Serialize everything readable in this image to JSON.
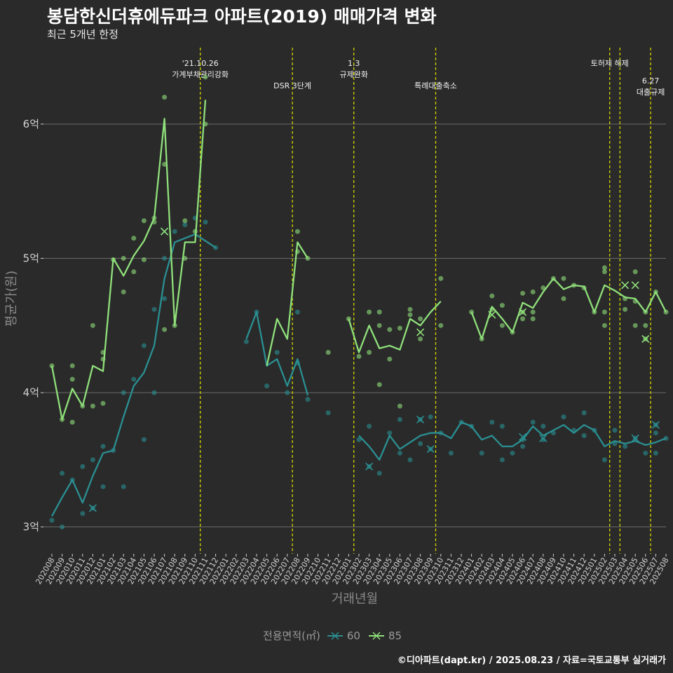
{
  "title": "봉담한신더휴에듀파크 아파트(2019) 매매가격 변화",
  "subtitle": "최근 5개년 한정",
  "caption": "©디아파트(dapt.kr) / 2025.08.23 / 자료=국토교통부 실거래가",
  "legend": {
    "title": "전용면적(㎡)",
    "items": [
      "60",
      "85"
    ]
  },
  "colors": {
    "background": "#2a2a2a",
    "series60": "#2a8f92",
    "series85": "#8fe07a",
    "vline": "#d4d400",
    "grid": "#6a6a6a",
    "axis_text": "#d0d0d0",
    "axis_title": "#8a8a8a"
  },
  "chart_data": {
    "type": "line",
    "xlabel": "거래년월",
    "ylabel": "평균가(원)",
    "ylim": [
      2.8,
      6.6
    ],
    "yticks": [
      3,
      4,
      5,
      6
    ],
    "ytick_labels": [
      "3억",
      "4억",
      "5억",
      "6억"
    ],
    "grid": true,
    "legend_position": "bottom",
    "categories": [
      "202008",
      "202009",
      "202010",
      "202011",
      "202012",
      "202101",
      "202102",
      "202103",
      "202104",
      "202105",
      "202106",
      "202107",
      "202108",
      "202109",
      "202110",
      "202111",
      "202112",
      "202201",
      "202202",
      "202203",
      "202204",
      "202205",
      "202206",
      "202207",
      "202208",
      "202209",
      "202210",
      "202211",
      "202212",
      "202301",
      "202302",
      "202303",
      "202304",
      "202305",
      "202306",
      "202307",
      "202308",
      "202309",
      "202310",
      "202311",
      "202312",
      "202401",
      "202402",
      "202403",
      "202404",
      "202405",
      "202406",
      "202407",
      "202408",
      "202409",
      "202410",
      "202411",
      "202412",
      "202501",
      "202502",
      "202503",
      "202504",
      "202505",
      "202506",
      "202507",
      "202508"
    ],
    "series": [
      {
        "name": "60",
        "values": [
          3.08,
          3.22,
          3.35,
          3.18,
          3.38,
          3.55,
          3.57,
          3.82,
          4.05,
          4.15,
          4.35,
          4.85,
          5.12,
          5.15,
          5.18,
          5.13,
          5.08,
          null,
          null,
          4.4,
          4.6,
          4.2,
          4.25,
          4.05,
          4.25,
          3.98,
          null,
          null,
          null,
          null,
          3.68,
          3.6,
          3.5,
          3.68,
          3.58,
          3.63,
          3.68,
          3.7,
          3.7,
          3.66,
          3.78,
          3.75,
          3.65,
          3.68,
          3.6,
          3.6,
          3.65,
          3.75,
          3.68,
          3.72,
          3.76,
          3.7,
          3.76,
          3.72,
          3.6,
          3.64,
          3.62,
          3.64,
          3.61,
          3.63,
          3.66
        ],
        "points": [
          [
            0,
            3.05
          ],
          [
            1,
            3.4
          ],
          [
            1,
            3.0
          ],
          [
            2,
            3.35
          ],
          [
            3,
            3.1
          ],
          [
            3,
            3.45
          ],
          [
            4,
            3.14
          ],
          [
            4,
            3.5
          ],
          [
            5,
            3.6
          ],
          [
            5,
            3.3
          ],
          [
            6,
            3.57
          ],
          [
            7,
            4.0
          ],
          [
            7,
            3.3
          ],
          [
            8,
            4.1
          ],
          [
            9,
            4.35
          ],
          [
            9,
            3.65
          ],
          [
            10,
            4.62
          ],
          [
            10,
            4.0
          ],
          [
            11,
            5.0
          ],
          [
            11,
            4.7
          ],
          [
            12,
            5.2
          ],
          [
            13,
            5.25
          ],
          [
            14,
            5.3
          ],
          [
            15,
            5.27
          ],
          [
            16,
            5.08
          ],
          [
            19,
            4.38
          ],
          [
            20,
            4.6
          ],
          [
            21,
            4.05
          ],
          [
            22,
            4.3
          ],
          [
            23,
            4.0
          ],
          [
            24,
            4.6
          ],
          [
            24,
            4.22
          ],
          [
            25,
            3.95
          ],
          [
            27,
            3.85
          ],
          [
            30,
            3.65
          ],
          [
            31,
            3.45
          ],
          [
            31,
            3.75
          ],
          [
            32,
            3.4
          ],
          [
            33,
            3.7
          ],
          [
            34,
            3.55
          ],
          [
            34,
            3.8
          ],
          [
            35,
            3.5
          ],
          [
            36,
            3.8
          ],
          [
            36,
            3.62
          ],
          [
            37,
            3.58
          ],
          [
            37,
            3.82
          ],
          [
            38,
            3.7
          ],
          [
            39,
            3.55
          ],
          [
            40,
            3.78
          ],
          [
            41,
            3.75
          ],
          [
            42,
            3.55
          ],
          [
            43,
            3.78
          ],
          [
            44,
            3.5
          ],
          [
            44,
            3.75
          ],
          [
            45,
            3.55
          ],
          [
            46,
            3.65
          ],
          [
            46,
            3.6
          ],
          [
            47,
            3.78
          ],
          [
            48,
            3.65
          ],
          [
            48,
            3.75
          ],
          [
            49,
            3.7
          ],
          [
            50,
            3.82
          ],
          [
            51,
            3.72
          ],
          [
            52,
            3.85
          ],
          [
            52,
            3.68
          ],
          [
            53,
            3.72
          ],
          [
            54,
            3.5
          ],
          [
            55,
            3.62
          ],
          [
            55,
            3.72
          ],
          [
            56,
            3.6
          ],
          [
            57,
            3.66
          ],
          [
            58,
            3.55
          ],
          [
            59,
            3.76
          ],
          [
            59,
            3.7
          ],
          [
            59,
            3.55
          ],
          [
            60,
            3.66
          ]
        ],
        "cancelled": [
          [
            4,
            3.14
          ],
          [
            11,
            5.2
          ],
          [
            31,
            3.45
          ],
          [
            36,
            3.8
          ],
          [
            37,
            3.58
          ],
          [
            46,
            3.67
          ],
          [
            48,
            3.66
          ],
          [
            57,
            3.66
          ],
          [
            59,
            3.76
          ]
        ]
      },
      {
        "name": "85",
        "values": [
          4.2,
          3.8,
          4.03,
          3.9,
          4.2,
          4.16,
          5.0,
          4.87,
          5.02,
          5.13,
          5.3,
          6.04,
          4.5,
          5.12,
          5.12,
          6.18,
          null,
          null,
          null,
          null,
          null,
          4.2,
          4.55,
          4.4,
          5.12,
          5.0,
          null,
          4.3,
          null,
          4.55,
          4.3,
          4.5,
          4.33,
          4.35,
          4.32,
          4.55,
          4.5,
          4.6,
          4.68,
          null,
          null,
          4.6,
          4.4,
          4.64,
          4.55,
          4.45,
          4.67,
          4.63,
          4.75,
          4.85,
          4.77,
          4.8,
          4.79,
          4.6,
          4.8,
          4.76,
          4.71,
          4.7,
          4.6,
          4.75,
          4.6
        ],
        "points": [
          [
            0,
            4.2
          ],
          [
            1,
            3.8
          ],
          [
            2,
            4.2
          ],
          [
            2,
            4.1
          ],
          [
            2,
            3.78
          ],
          [
            3,
            3.9
          ],
          [
            4,
            4.5
          ],
          [
            4,
            3.9
          ],
          [
            5,
            4.3
          ],
          [
            5,
            4.25
          ],
          [
            5,
            3.92
          ],
          [
            6,
            4.99
          ],
          [
            7,
            5.0
          ],
          [
            7,
            4.75
          ],
          [
            8,
            5.15
          ],
          [
            8,
            4.9
          ],
          [
            9,
            5.28
          ],
          [
            9,
            4.99
          ],
          [
            10,
            5.3
          ],
          [
            10,
            5.27
          ],
          [
            11,
            6.2
          ],
          [
            11,
            5.7
          ],
          [
            11,
            4.47
          ],
          [
            12,
            4.5
          ],
          [
            13,
            5.28
          ],
          [
            13,
            5.0
          ],
          [
            14,
            5.2
          ],
          [
            15,
            6.35
          ],
          [
            15,
            6.0
          ],
          [
            24,
            5.2
          ],
          [
            24,
            5.05
          ],
          [
            25,
            5.0
          ],
          [
            27,
            4.3
          ],
          [
            29,
            4.55
          ],
          [
            30,
            4.27
          ],
          [
            31,
            4.3
          ],
          [
            31,
            4.6
          ],
          [
            32,
            4.6
          ],
          [
            32,
            4.5
          ],
          [
            32,
            4.06
          ],
          [
            33,
            4.47
          ],
          [
            33,
            4.25
          ],
          [
            34,
            4.48
          ],
          [
            34,
            3.9
          ],
          [
            35,
            4.62
          ],
          [
            35,
            4.58
          ],
          [
            36,
            4.55
          ],
          [
            36,
            4.4
          ],
          [
            38,
            4.85
          ],
          [
            38,
            4.5
          ],
          [
            41,
            4.6
          ],
          [
            42,
            4.4
          ],
          [
            43,
            4.72
          ],
          [
            43,
            4.62
          ],
          [
            44,
            4.65
          ],
          [
            44,
            4.5
          ],
          [
            45,
            4.45
          ],
          [
            46,
            4.74
          ],
          [
            46,
            4.6
          ],
          [
            46,
            4.55
          ],
          [
            47,
            4.75
          ],
          [
            47,
            4.6
          ],
          [
            47,
            4.55
          ],
          [
            48,
            4.78
          ],
          [
            49,
            4.85
          ],
          [
            50,
            4.85
          ],
          [
            50,
            4.7
          ],
          [
            51,
            4.8
          ],
          [
            52,
            4.78
          ],
          [
            53,
            4.6
          ],
          [
            54,
            4.93
          ],
          [
            54,
            4.9
          ],
          [
            54,
            4.6
          ],
          [
            54,
            4.5
          ],
          [
            56,
            4.7
          ],
          [
            56,
            4.62
          ],
          [
            57,
            4.9
          ],
          [
            57,
            4.68
          ],
          [
            57,
            4.5
          ],
          [
            58,
            4.6
          ],
          [
            58,
            4.5
          ],
          [
            58,
            4.4
          ],
          [
            59,
            4.75
          ],
          [
            60,
            4.6
          ]
        ],
        "cancelled": [
          [
            11,
            5.2
          ],
          [
            36,
            4.45
          ],
          [
            43,
            4.58
          ],
          [
            46,
            4.6
          ],
          [
            56,
            4.8
          ],
          [
            57,
            4.8
          ],
          [
            58,
            4.4
          ]
        ]
      }
    ],
    "annotations": [
      {
        "x_index": 14.5,
        "lines": [
          "'21.10.26",
          "가계부채관리강화"
        ],
        "row": 0
      },
      {
        "x_index": 23.5,
        "lines": [
          "DSR 3단계"
        ],
        "row": 1
      },
      {
        "x_index": 29.5,
        "lines": [
          "1.3",
          "규제완화"
        ],
        "row": 0
      },
      {
        "x_index": 37.5,
        "lines": [
          "특례대출축소"
        ],
        "row": 1
      },
      {
        "x_index": 54.5,
        "lines": [
          "토허제 해제"
        ],
        "row": 0
      },
      {
        "x_index": 55.5,
        "lines": [],
        "row": 0
      },
      {
        "x_index": 58.5,
        "lines": [
          "6.27",
          "대출규제"
        ],
        "row": 2
      }
    ]
  }
}
